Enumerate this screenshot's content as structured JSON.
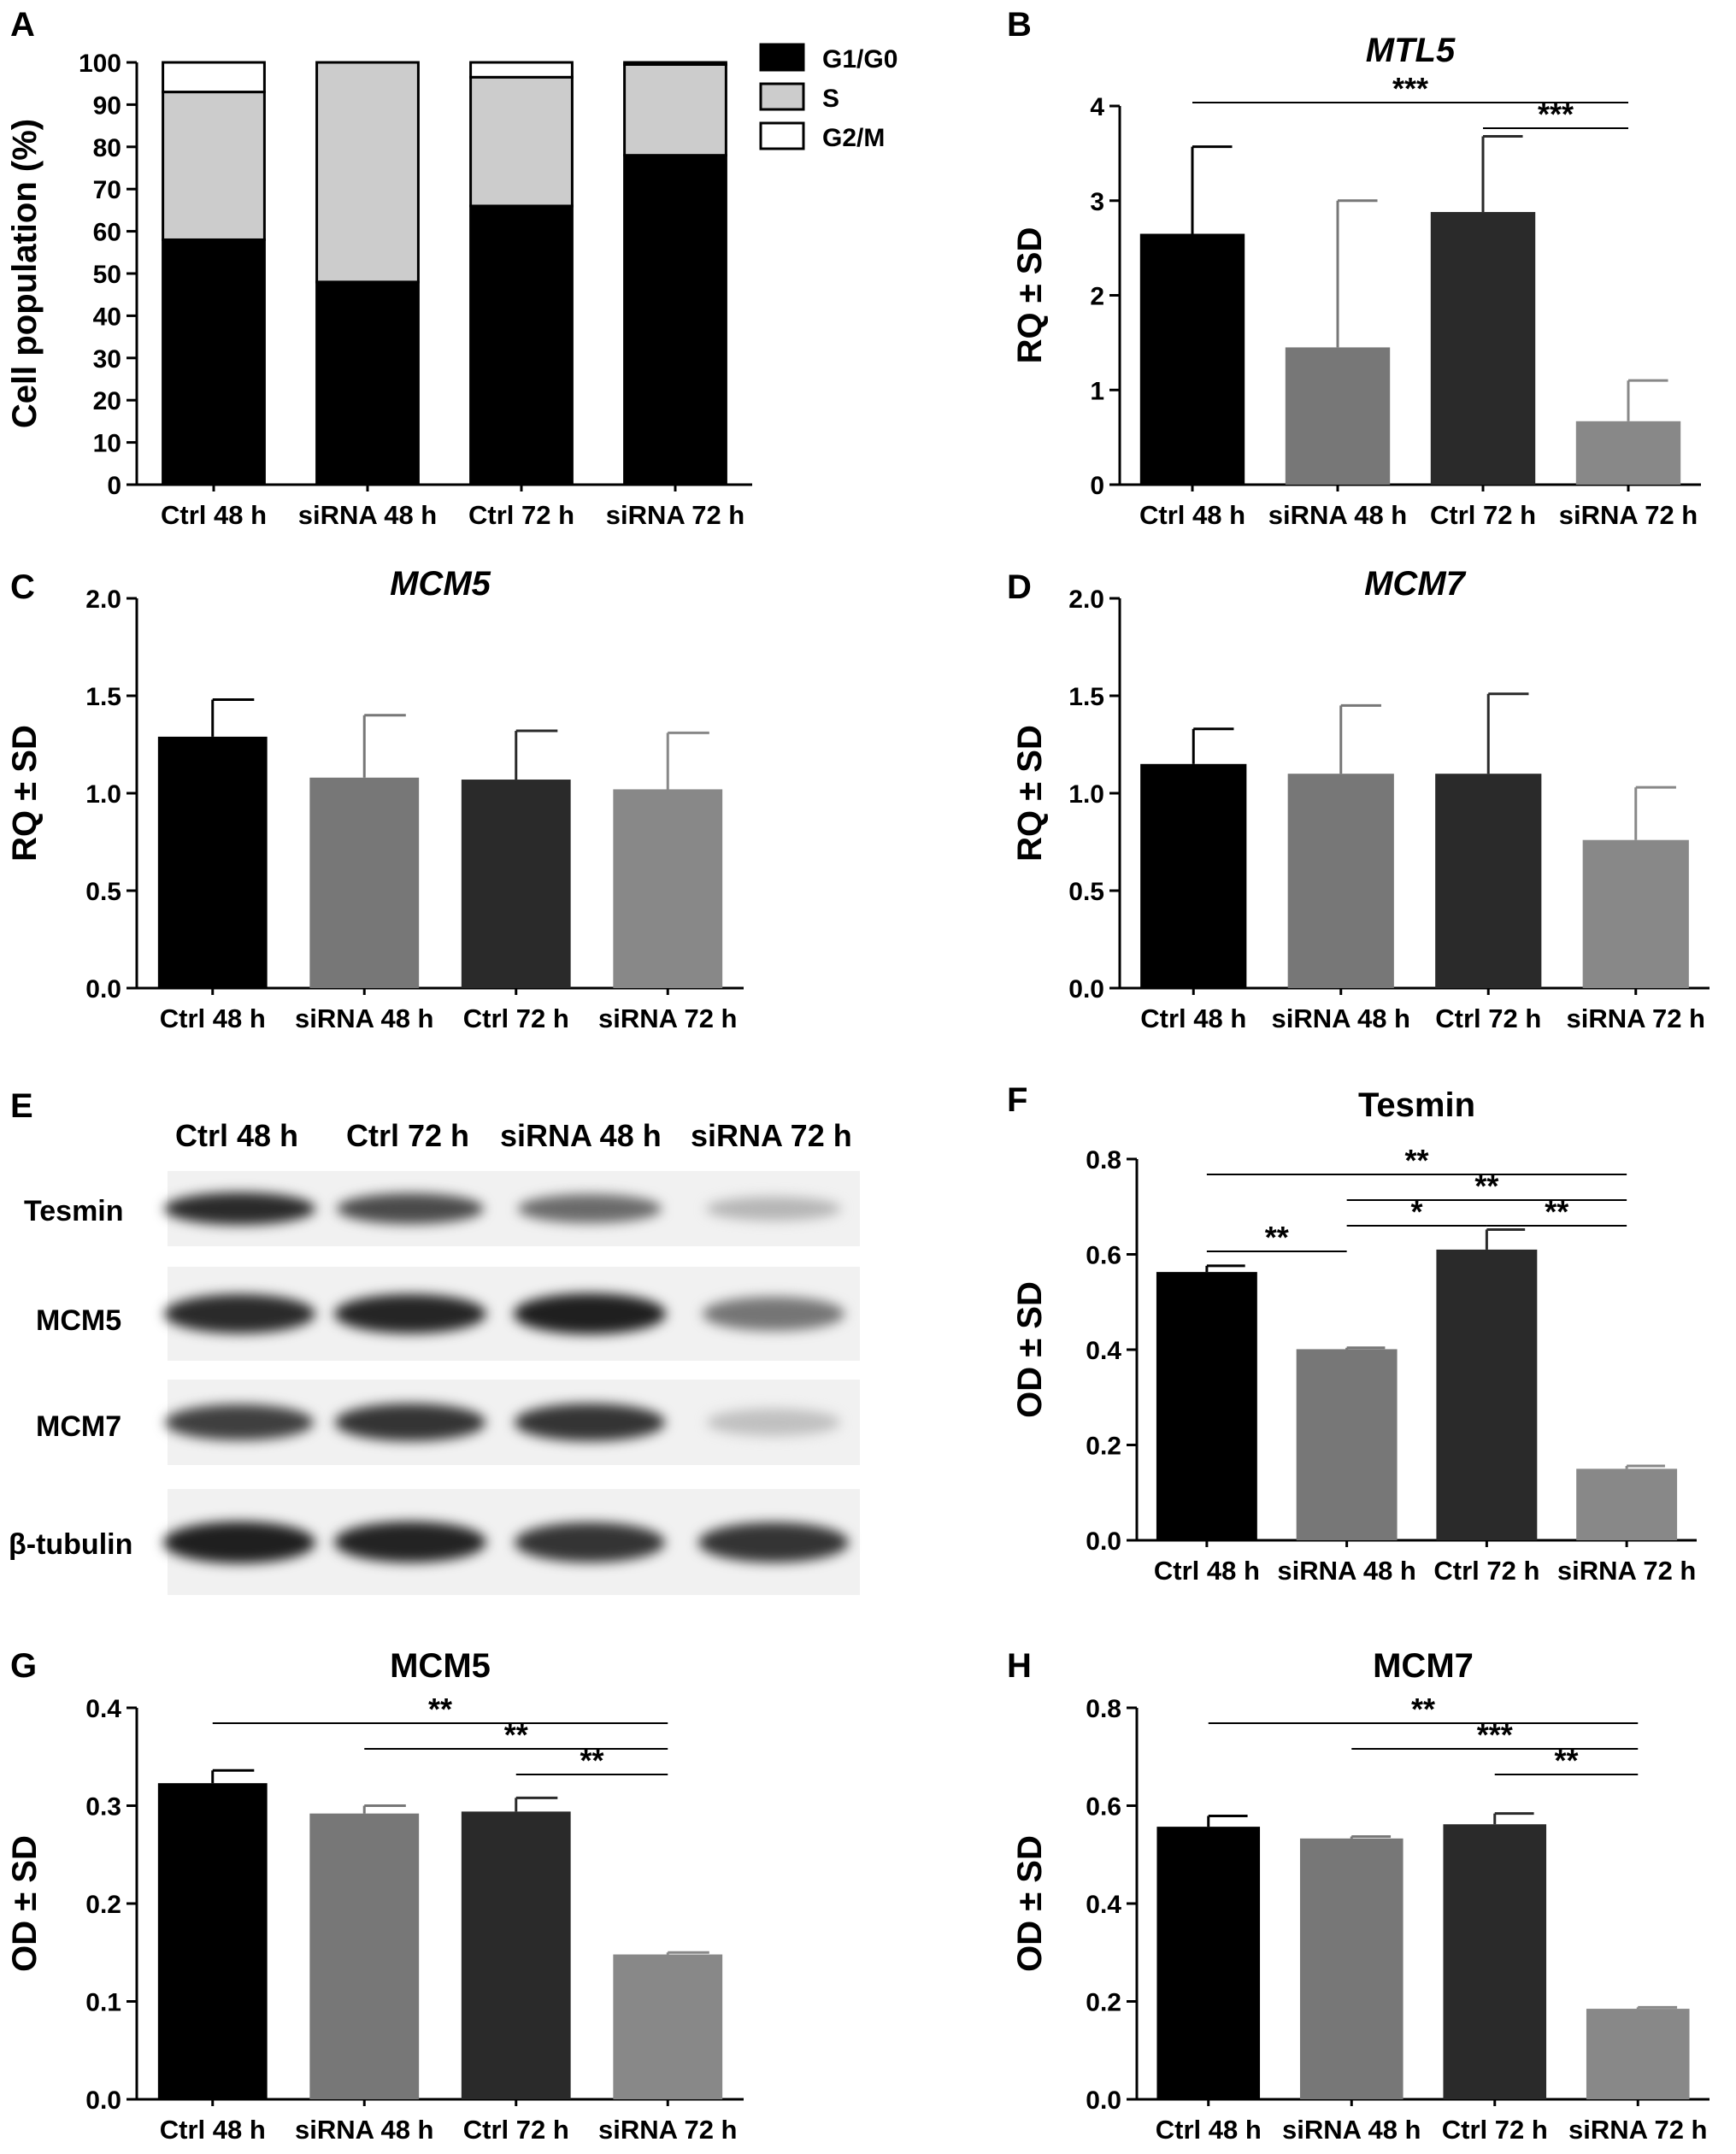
{
  "chart_data": [
    {
      "panel": "A",
      "type": "bar",
      "stacked": true,
      "title": "",
      "ylabel": "Cell population (%)",
      "xlabel": "",
      "ylim": [
        0,
        100
      ],
      "yticks": [
        "0",
        "10",
        "20",
        "30",
        "40",
        "50",
        "60",
        "70",
        "80",
        "90",
        "100"
      ],
      "categories": [
        "Ctrl 48 h",
        "siRNA 48 h",
        "Ctrl 72 h",
        "siRNA 72 h"
      ],
      "series": [
        {
          "name": "G1/G0",
          "color": "#000000",
          "values": [
            58,
            48,
            66,
            78
          ]
        },
        {
          "name": "S",
          "color": "#cccccc",
          "values": [
            35,
            52,
            30.5,
            21.5
          ]
        },
        {
          "name": "G2/M",
          "color": "#ffffff",
          "values": [
            7,
            0,
            3.5,
            0.5
          ]
        }
      ],
      "legend": "top-right"
    },
    {
      "panel": "B",
      "type": "bar",
      "title": "MTL5",
      "title_italic": true,
      "ylabel": "RQ ± SD",
      "ylim": [
        0,
        4
      ],
      "yticks": [
        "0",
        "1",
        "2",
        "3",
        "4"
      ],
      "categories": [
        "Ctrl 48 h",
        "siRNA 48 h",
        "Ctrl 72 h",
        "siRNA 72 h"
      ],
      "values": [
        2.65,
        1.45,
        2.88,
        0.67
      ],
      "errors": [
        0.92,
        1.55,
        0.8,
        0.43
      ],
      "colors": [
        "#000000",
        "#777777",
        "#2a2a2a",
        "#888888"
      ],
      "significance": [
        {
          "from": 0,
          "to": 3,
          "level": 0,
          "label": "***"
        },
        {
          "from": 2,
          "to": 3,
          "level": 1,
          "label": "***"
        }
      ]
    },
    {
      "panel": "C",
      "type": "bar",
      "title": "MCM5",
      "title_italic": true,
      "ylabel": "RQ ± SD",
      "ylim": [
        0,
        2
      ],
      "yticks": [
        "0.0",
        "0.5",
        "1.0",
        "1.5",
        "2.0"
      ],
      "categories": [
        "Ctrl 48 h",
        "siRNA 48 h",
        "Ctrl 72 h",
        "siRNA 72 h"
      ],
      "values": [
        1.29,
        1.08,
        1.07,
        1.02
      ],
      "errors": [
        0.19,
        0.32,
        0.25,
        0.29
      ],
      "colors": [
        "#000000",
        "#777777",
        "#2a2a2a",
        "#888888"
      ],
      "significance": []
    },
    {
      "panel": "D",
      "type": "bar",
      "title": "MCM7",
      "title_italic": true,
      "ylabel": "RQ ± SD",
      "ylim": [
        0,
        2
      ],
      "yticks": [
        "0.0",
        "0.5",
        "1.0",
        "1.5",
        "2.0"
      ],
      "categories": [
        "Ctrl 48 h",
        "siRNA 48 h",
        "Ctrl 72 h",
        "siRNA 72 h"
      ],
      "values": [
        1.15,
        1.1,
        1.1,
        0.76
      ],
      "errors": [
        0.18,
        0.35,
        0.41,
        0.27
      ],
      "colors": [
        "#000000",
        "#777777",
        "#2a2a2a",
        "#888888"
      ],
      "significance": []
    },
    {
      "panel": "F",
      "type": "bar",
      "title": "Tesmin",
      "title_italic": false,
      "ylabel": "OD ± SD",
      "ylim": [
        0,
        0.8
      ],
      "yticks": [
        "0.0",
        "0.2",
        "0.4",
        "0.6",
        "0.8"
      ],
      "categories": [
        "Ctrl 48 h",
        "siRNA 48 h",
        "Ctrl 72 h",
        "siRNA 72 h"
      ],
      "values": [
        0.563,
        0.401,
        0.61,
        0.15
      ],
      "errors": [
        0.013,
        0.003,
        0.042,
        0.006
      ],
      "colors": [
        "#000000",
        "#777777",
        "#2a2a2a",
        "#888888"
      ],
      "significance": [
        {
          "from": 0,
          "to": 3,
          "level": 0,
          "label": "**"
        },
        {
          "from": 1,
          "to": 3,
          "level": 1,
          "label": "**"
        },
        {
          "from": 1,
          "to": 2,
          "level": 2,
          "label": "*"
        },
        {
          "from": 2,
          "to": 3,
          "level": 2,
          "label": "**"
        },
        {
          "from": 0,
          "to": 1,
          "level": 3,
          "label": "**"
        }
      ]
    },
    {
      "panel": "G",
      "type": "bar",
      "title": "MCM5",
      "title_italic": false,
      "ylabel": "OD ± SD",
      "ylim": [
        0,
        0.4
      ],
      "yticks": [
        "0.0",
        "0.1",
        "0.2",
        "0.3",
        "0.4"
      ],
      "categories": [
        "Ctrl 48 h",
        "siRNA 48 h",
        "Ctrl 72 h",
        "siRNA 72 h"
      ],
      "values": [
        0.323,
        0.292,
        0.294,
        0.148
      ],
      "errors": [
        0.013,
        0.008,
        0.014,
        0.002
      ],
      "colors": [
        "#000000",
        "#777777",
        "#2a2a2a",
        "#888888"
      ],
      "significance": [
        {
          "from": 0,
          "to": 3,
          "level": 0,
          "label": "**"
        },
        {
          "from": 1,
          "to": 3,
          "level": 1,
          "label": "**"
        },
        {
          "from": 2,
          "to": 3,
          "level": 2,
          "label": "**"
        }
      ]
    },
    {
      "panel": "H",
      "type": "bar",
      "title": "MCM7",
      "title_italic": false,
      "ylabel": "OD ± SD",
      "ylim": [
        0,
        0.8
      ],
      "yticks": [
        "0.0",
        "0.2",
        "0.4",
        "0.6",
        "0.8"
      ],
      "categories": [
        "Ctrl 48 h",
        "siRNA 48 h",
        "Ctrl 72 h",
        "siRNA 72 h"
      ],
      "values": [
        0.557,
        0.533,
        0.562,
        0.185
      ],
      "errors": [
        0.022,
        0.004,
        0.022,
        0.003
      ],
      "colors": [
        "#000000",
        "#777777",
        "#2a2a2a",
        "#888888"
      ],
      "significance": [
        {
          "from": 0,
          "to": 3,
          "level": 0,
          "label": "**"
        },
        {
          "from": 1,
          "to": 3,
          "level": 1,
          "label": "***"
        },
        {
          "from": 2,
          "to": 3,
          "level": 2,
          "label": "**"
        }
      ]
    }
  ],
  "blot": {
    "panel": "E",
    "lanes": [
      "Ctrl 48 h",
      "Ctrl 72 h",
      "siRNA 48 h",
      "siRNA 72 h"
    ],
    "rows": [
      {
        "name": "Tesmin",
        "intensity": [
          0.9,
          0.75,
          0.6,
          0.25
        ]
      },
      {
        "name": "MCM5",
        "intensity": [
          0.9,
          0.92,
          0.95,
          0.55
        ]
      },
      {
        "name": "MCM7",
        "intensity": [
          0.8,
          0.85,
          0.85,
          0.2
        ]
      },
      {
        "name": "β-tubulin",
        "intensity": [
          0.95,
          0.93,
          0.85,
          0.85
        ]
      }
    ]
  }
}
